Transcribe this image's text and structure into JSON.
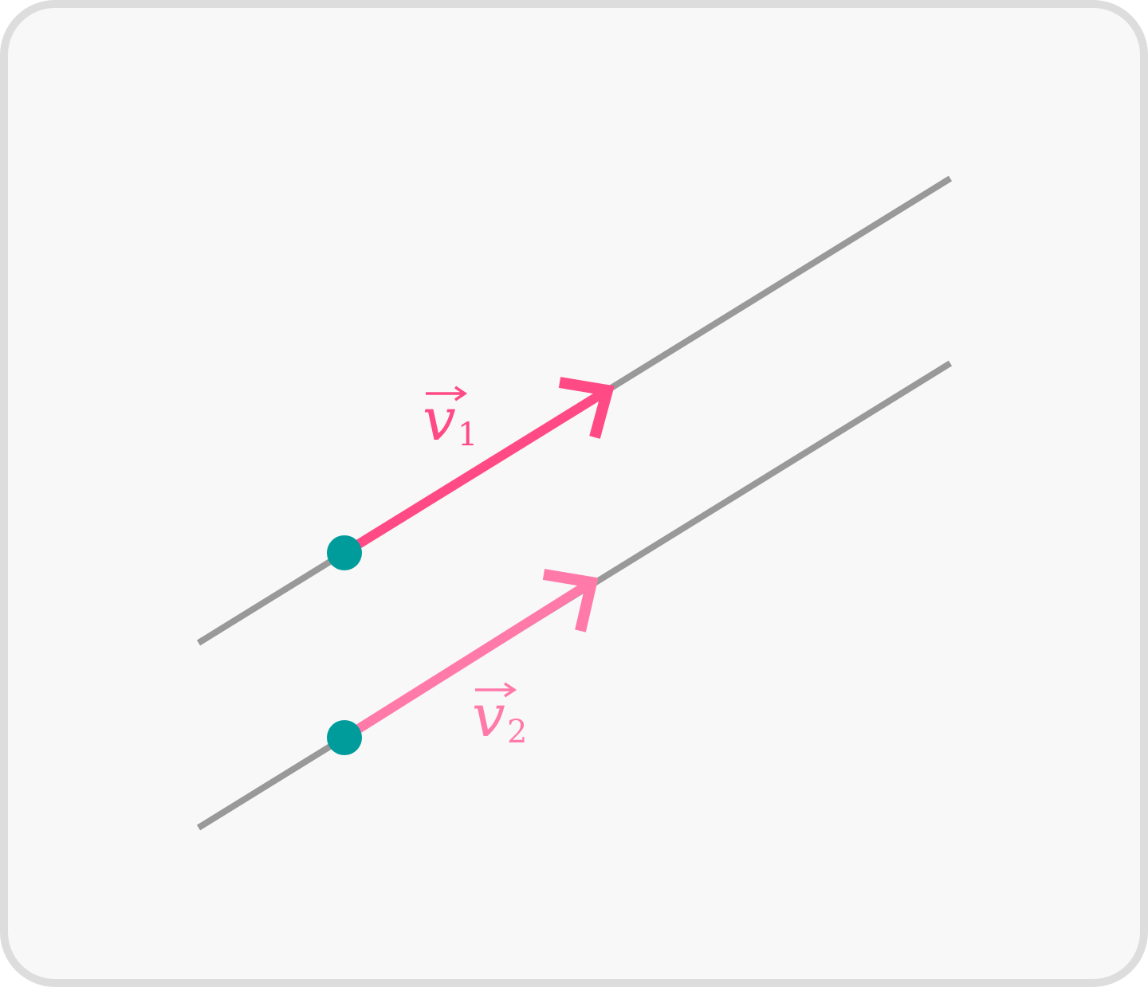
{
  "colors": {
    "background": "#f8f8f8",
    "border": "#dddddd",
    "line": "#999999",
    "vector1": "#ff4a85",
    "vector2": "#ff79a9",
    "point": "#009c9c"
  },
  "vectors": [
    {
      "letter": "v",
      "subscript": "1"
    },
    {
      "letter": "v",
      "subscript": "2"
    }
  ]
}
